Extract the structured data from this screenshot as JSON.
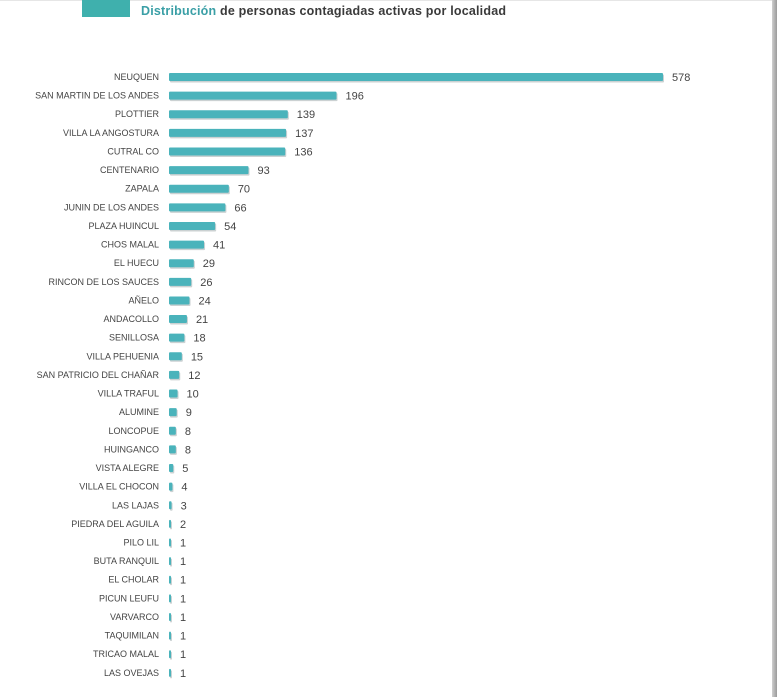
{
  "header": {
    "title_accent": "Distribución",
    "title_rest": " de personas contagiadas activas por localidad"
  },
  "colors": {
    "bar": "#4ab3bb",
    "bar_shadow": "#8c9a9b",
    "header_block": "#3fb0ad",
    "title_accent": "#3a9fa6"
  },
  "chart_data": {
    "type": "bar",
    "orientation": "horizontal",
    "title": "Distribución de personas contagiadas activas por localidad",
    "xlabel": "",
    "ylabel": "",
    "grid": false,
    "xlim": [
      0,
      578
    ],
    "categories": [
      "NEUQUEN",
      "SAN MARTIN DE LOS ANDES",
      "PLOTTIER",
      "VILLA LA ANGOSTURA",
      "CUTRAL CO",
      "CENTENARIO",
      "ZAPALA",
      "JUNIN DE LOS ANDES",
      "PLAZA HUINCUL",
      "CHOS MALAL",
      "EL HUECU",
      "RINCON DE LOS SAUCES",
      "AÑELO",
      "ANDACOLLO",
      "SENILLOSA",
      "VILLA PEHUENIA",
      "SAN PATRICIO DEL CHAÑAR",
      "VILLA TRAFUL",
      "ALUMINE",
      "LONCOPUE",
      "HUINGANCO",
      "VISTA ALEGRE",
      "VILLA EL CHOCON",
      "LAS LAJAS",
      "PIEDRA DEL AGUILA",
      "PILO LIL",
      "BUTA RANQUIL",
      "EL CHOLAR",
      "PICUN LEUFU",
      "VARVARCO",
      "TAQUIMILAN",
      "TRICAO MALAL",
      "LAS OVEJAS"
    ],
    "values": [
      578,
      196,
      139,
      137,
      136,
      93,
      70,
      66,
      54,
      41,
      29,
      26,
      24,
      21,
      18,
      15,
      12,
      10,
      9,
      8,
      8,
      5,
      4,
      3,
      2,
      1,
      1,
      1,
      1,
      1,
      1,
      1,
      1
    ]
  }
}
